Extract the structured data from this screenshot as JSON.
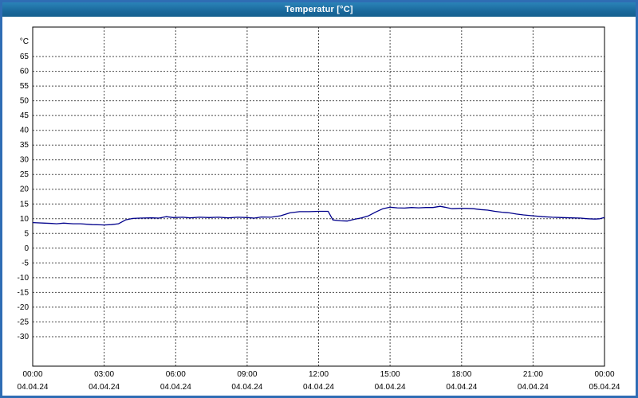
{
  "window": {
    "title": "Temperatur [°C]"
  },
  "chart_data": {
    "type": "line",
    "title": "Temperatur [°C]",
    "xlabel": "",
    "ylabel": "°C",
    "grid": true,
    "legend": false,
    "y_ticks": [
      65,
      60,
      55,
      50,
      45,
      40,
      35,
      30,
      25,
      20,
      15,
      10,
      5,
      0,
      -5,
      -10,
      -15,
      -20,
      -25,
      -30
    ],
    "y_plot_max": 75,
    "y_plot_min": -40,
    "x_plot_max_hours": 24,
    "x_ticks": [
      {
        "hour": 0,
        "time": "00:00",
        "date": "04.04.24"
      },
      {
        "hour": 3,
        "time": "03:00",
        "date": "04.04.24"
      },
      {
        "hour": 6,
        "time": "06:00",
        "date": "04.04.24"
      },
      {
        "hour": 9,
        "time": "09:00",
        "date": "04.04.24"
      },
      {
        "hour": 12,
        "time": "12:00",
        "date": "04.04.24"
      },
      {
        "hour": 15,
        "time": "15:00",
        "date": "04.04.24"
      },
      {
        "hour": 18,
        "time": "18:00",
        "date": "04.04.24"
      },
      {
        "hour": 21,
        "time": "21:00",
        "date": "04.04.24"
      },
      {
        "hour": 24,
        "time": "00:00",
        "date": "05.04.24"
      }
    ],
    "series": [
      {
        "name": "Temperatur",
        "color": "#00008b",
        "points": [
          [
            0,
            8.7
          ],
          [
            0.5,
            8.5
          ],
          [
            0.8,
            8.4
          ],
          [
            1.0,
            8.3
          ],
          [
            1.3,
            8.5
          ],
          [
            1.7,
            8.3
          ],
          [
            2.0,
            8.3
          ],
          [
            2.5,
            8.0
          ],
          [
            3.0,
            7.9
          ],
          [
            3.3,
            8.0
          ],
          [
            3.6,
            8.3
          ],
          [
            3.9,
            9.6
          ],
          [
            4.2,
            10.1
          ],
          [
            4.5,
            10.2
          ],
          [
            5.0,
            10.3
          ],
          [
            5.3,
            10.2
          ],
          [
            5.6,
            10.7
          ],
          [
            5.9,
            10.4
          ],
          [
            6.3,
            10.5
          ],
          [
            6.6,
            10.3
          ],
          [
            7.0,
            10.5
          ],
          [
            7.4,
            10.4
          ],
          [
            7.8,
            10.5
          ],
          [
            8.2,
            10.3
          ],
          [
            8.6,
            10.5
          ],
          [
            9.0,
            10.4
          ],
          [
            9.3,
            10.2
          ],
          [
            9.6,
            10.6
          ],
          [
            10.0,
            10.5
          ],
          [
            10.4,
            11.0
          ],
          [
            10.8,
            12.0
          ],
          [
            11.2,
            12.4
          ],
          [
            11.6,
            12.4
          ],
          [
            12.0,
            12.5
          ],
          [
            12.4,
            12.5
          ],
          [
            12.6,
            9.6
          ],
          [
            12.9,
            9.3
          ],
          [
            13.2,
            9.2
          ],
          [
            13.5,
            9.8
          ],
          [
            13.8,
            10.3
          ],
          [
            14.1,
            11.0
          ],
          [
            14.4,
            12.3
          ],
          [
            14.7,
            13.4
          ],
          [
            15.0,
            13.9
          ],
          [
            15.3,
            13.7
          ],
          [
            15.6,
            13.6
          ],
          [
            15.9,
            13.8
          ],
          [
            16.2,
            13.7
          ],
          [
            16.5,
            13.8
          ],
          [
            16.8,
            13.8
          ],
          [
            17.1,
            14.2
          ],
          [
            17.3,
            13.9
          ],
          [
            17.6,
            13.4
          ],
          [
            17.9,
            13.5
          ],
          [
            18.2,
            13.5
          ],
          [
            18.5,
            13.4
          ],
          [
            18.8,
            13.1
          ],
          [
            19.1,
            12.9
          ],
          [
            19.4,
            12.5
          ],
          [
            19.7,
            12.2
          ],
          [
            20.0,
            12.0
          ],
          [
            20.3,
            11.6
          ],
          [
            20.6,
            11.3
          ],
          [
            21.0,
            11.0
          ],
          [
            21.4,
            10.7
          ],
          [
            21.8,
            10.5
          ],
          [
            22.2,
            10.4
          ],
          [
            22.6,
            10.3
          ],
          [
            23.0,
            10.2
          ],
          [
            23.3,
            10.0
          ],
          [
            23.6,
            9.9
          ],
          [
            23.8,
            10.0
          ],
          [
            24.0,
            10.4
          ]
        ]
      }
    ]
  }
}
